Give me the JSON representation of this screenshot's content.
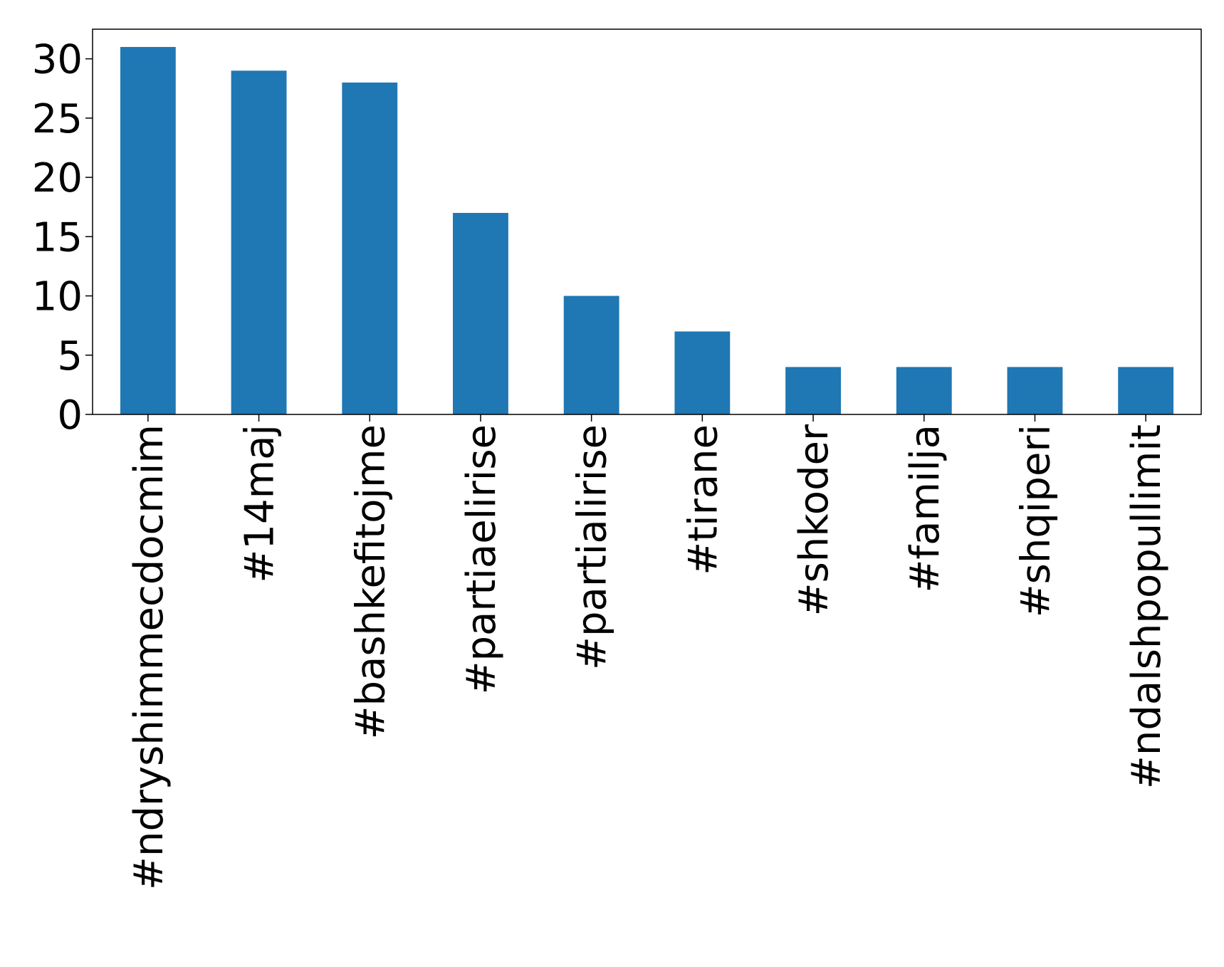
{
  "chart_data": {
    "type": "bar",
    "categories": [
      "#ndryshimmecdocmim",
      "#14maj",
      "#bashkefitojme",
      "#partiaelirise",
      "#partialirise",
      "#tirane",
      "#shkoder",
      "#familja",
      "#shqiperi",
      "#ndalshpopullimit"
    ],
    "values": [
      31,
      29,
      28,
      17,
      10,
      7,
      4,
      4,
      4,
      4
    ],
    "color": "#1f77b4",
    "ylim": [
      0,
      32.5
    ],
    "yticks": [
      0,
      5,
      10,
      15,
      20,
      25,
      30
    ]
  }
}
